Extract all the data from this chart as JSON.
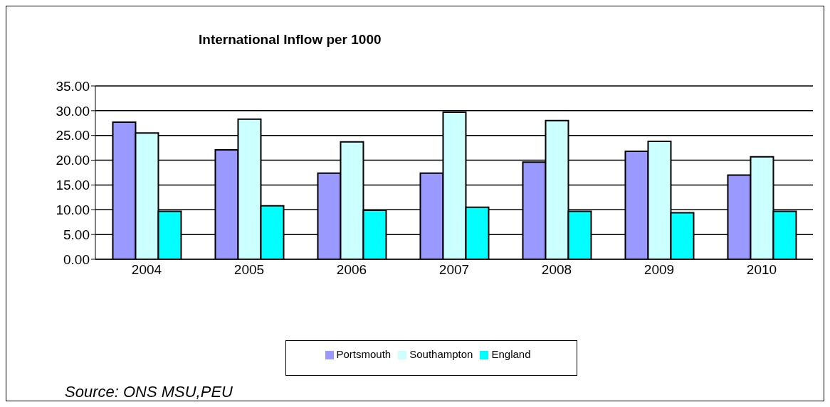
{
  "chart_data": {
    "type": "bar",
    "title": "International Inflow per 1000",
    "categories": [
      "2004",
      "2005",
      "2006",
      "2007",
      "2008",
      "2009",
      "2010"
    ],
    "series": [
      {
        "name": "Portsmouth",
        "color": "#9999ff",
        "values": [
          27.7,
          22.1,
          17.4,
          17.4,
          19.6,
          21.8,
          17.0
        ]
      },
      {
        "name": "Southampton",
        "color": "#ccffff",
        "values": [
          25.5,
          28.3,
          23.7,
          29.7,
          28.0,
          23.8,
          20.7
        ]
      },
      {
        "name": "England",
        "color": "#00ffff",
        "values": [
          9.7,
          10.8,
          9.9,
          10.5,
          9.7,
          9.4,
          9.7
        ]
      }
    ],
    "ylim": [
      0,
      35
    ],
    "yticks": [
      {
        "value": 0,
        "label": "0.00"
      },
      {
        "value": 5,
        "label": "5.00"
      },
      {
        "value": 10,
        "label": "10.00"
      },
      {
        "value": 15,
        "label": "15.00"
      },
      {
        "value": 20,
        "label": "20.00"
      },
      {
        "value": 25,
        "label": "25.00"
      },
      {
        "value": 30,
        "label": "30.00"
      },
      {
        "value": 35,
        "label": "35.00"
      }
    ],
    "grid": "y",
    "legend": "bottom",
    "annotations": [
      "Source: ONS MSU,PEU"
    ]
  }
}
